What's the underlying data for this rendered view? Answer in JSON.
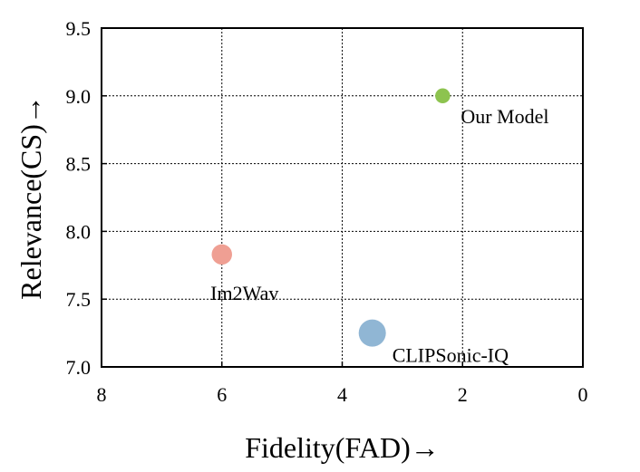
{
  "chart_data": {
    "type": "scatter",
    "xlabel": "Fidelity(FAD)→",
    "ylabel": "Relevance(CS)→",
    "xlim": [
      8,
      0
    ],
    "ylim": [
      7.0,
      9.5
    ],
    "x_reversed": true,
    "xticks": [
      8,
      6,
      4,
      2,
      0
    ],
    "xtick_labels": [
      "8",
      "6",
      "4",
      "2",
      "0"
    ],
    "yticks": [
      7.0,
      7.5,
      8.0,
      8.5,
      9.0,
      9.5
    ],
    "ytick_labels": [
      "7.0",
      "7.5",
      "8.0",
      "8.5",
      "9.0",
      "9.5"
    ],
    "grid": true,
    "points": [
      {
        "label": "Our Model",
        "x": 2.33,
        "y": 9.0,
        "size_rel": 0.55,
        "color": "#8dc34f"
      },
      {
        "label": "Im2Wav",
        "x": 6.0,
        "y": 7.83,
        "size_rel": 0.75,
        "color": "#ef9f93"
      },
      {
        "label": "CLIPSonic-IQ",
        "x": 3.5,
        "y": 7.25,
        "size_rel": 1.0,
        "color": "#90b6d4"
      }
    ]
  }
}
